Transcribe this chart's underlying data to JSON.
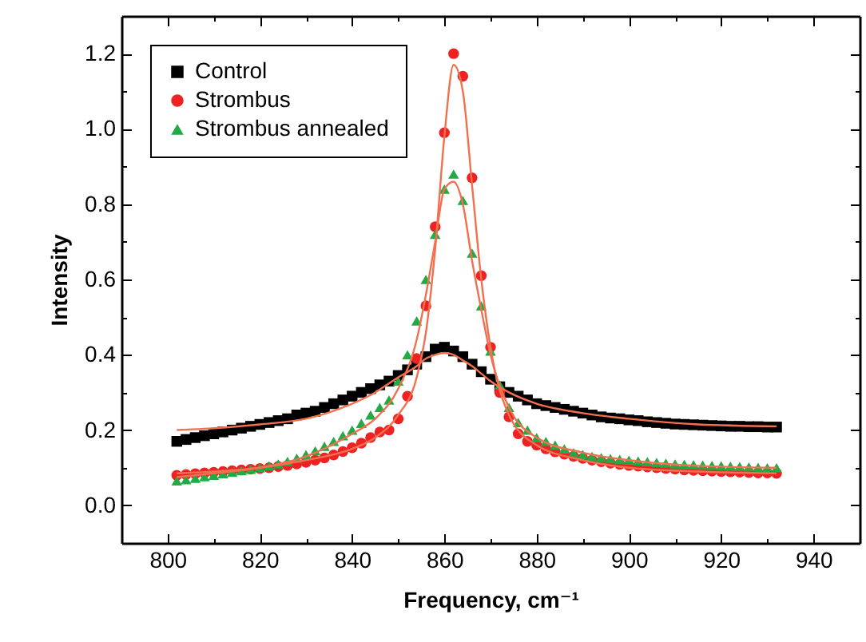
{
  "chart_data": {
    "type": "scatter",
    "xlabel": "Frequency, cm⁻¹",
    "ylabel": "Intensity",
    "legend": "top left",
    "xlim": [
      790,
      950
    ],
    "ylim": [
      -0.1,
      1.3
    ],
    "xticks": [
      800,
      {
        "value": 810,
        "label": null
      },
      820,
      {
        "value": 830,
        "label": null
      },
      840,
      {
        "value": 850,
        "label": null
      },
      860,
      {
        "value": 870,
        "label": null
      },
      880,
      {
        "value": 890,
        "label": null
      },
      900,
      {
        "value": 910,
        "label": null
      },
      920,
      {
        "value": 930,
        "label": null
      },
      940
    ],
    "yticks": [
      {
        "value": -0.1,
        "label": null
      },
      {
        "value": 0,
        "label": "0.0"
      },
      {
        "value": 0.1,
        "label": null
      },
      {
        "value": 0.2,
        "label": "0.2"
      },
      {
        "value": 0.3,
        "label": null
      },
      {
        "value": 0.4,
        "label": "0.4"
      },
      {
        "value": 0.5,
        "label": null
      },
      {
        "value": 0.6,
        "label": "0.6"
      },
      {
        "value": 0.7,
        "label": null
      },
      {
        "value": 0.8,
        "label": "0.8"
      },
      {
        "value": 0.9,
        "label": null
      },
      {
        "value": 1.0,
        "label": "1.0"
      },
      {
        "value": 1.1,
        "label": null
      },
      {
        "value": 1.2,
        "label": "1.2"
      }
    ],
    "series": [
      {
        "name": "Control",
        "marker": "square",
        "color": "#000000",
        "x": [
          802,
          804,
          806,
          808,
          810,
          812,
          814,
          816,
          818,
          820,
          822,
          824,
          826,
          828,
          830,
          832,
          834,
          836,
          838,
          840,
          842,
          844,
          846,
          848,
          850,
          852,
          854,
          856,
          858,
          860,
          862,
          864,
          866,
          868,
          870,
          872,
          874,
          876,
          878,
          880,
          882,
          884,
          886,
          888,
          890,
          892,
          894,
          896,
          898,
          900,
          902,
          904,
          906,
          908,
          910,
          912,
          914,
          916,
          918,
          920,
          922,
          924,
          926,
          928,
          930,
          932
        ],
        "values": [
          0.17,
          0.175,
          0.18,
          0.185,
          0.19,
          0.195,
          0.2,
          0.205,
          0.21,
          0.215,
          0.22,
          0.225,
          0.23,
          0.24,
          0.245,
          0.25,
          0.26,
          0.27,
          0.28,
          0.29,
          0.3,
          0.31,
          0.32,
          0.33,
          0.345,
          0.36,
          0.375,
          0.395,
          0.415,
          0.42,
          0.41,
          0.395,
          0.375,
          0.355,
          0.335,
          0.315,
          0.3,
          0.29,
          0.28,
          0.27,
          0.265,
          0.26,
          0.255,
          0.25,
          0.245,
          0.24,
          0.235,
          0.232,
          0.23,
          0.227,
          0.225,
          0.222,
          0.22,
          0.218,
          0.216,
          0.215,
          0.214,
          0.213,
          0.212,
          0.211,
          0.21,
          0.21,
          0.209,
          0.209,
          0.208,
          0.208
        ]
      },
      {
        "name": "Strombus",
        "marker": "circle",
        "color": "#ee2222",
        "x": [
          802,
          804,
          806,
          808,
          810,
          812,
          814,
          816,
          818,
          820,
          822,
          824,
          826,
          828,
          830,
          832,
          834,
          836,
          838,
          840,
          842,
          844,
          846,
          848,
          850,
          852,
          854,
          856,
          858,
          860,
          862,
          864,
          866,
          868,
          870,
          872,
          874,
          876,
          878,
          880,
          882,
          884,
          886,
          888,
          890,
          892,
          894,
          896,
          898,
          900,
          902,
          904,
          906,
          908,
          910,
          912,
          914,
          916,
          918,
          920,
          922,
          924,
          926,
          928,
          930,
          932
        ],
        "values": [
          0.08,
          0.082,
          0.084,
          0.086,
          0.088,
          0.09,
          0.092,
          0.094,
          0.096,
          0.098,
          0.1,
          0.103,
          0.106,
          0.11,
          0.114,
          0.12,
          0.126,
          0.134,
          0.143,
          0.153,
          0.165,
          0.18,
          0.195,
          0.2,
          0.23,
          0.29,
          0.39,
          0.53,
          0.74,
          0.99,
          1.2,
          1.14,
          0.87,
          0.61,
          0.42,
          0.3,
          0.235,
          0.19,
          0.17,
          0.16,
          0.15,
          0.142,
          0.136,
          0.13,
          0.125,
          0.12,
          0.116,
          0.112,
          0.109,
          0.106,
          0.104,
          0.102,
          0.1,
          0.098,
          0.096,
          0.094,
          0.093,
          0.092,
          0.091,
          0.09,
          0.089,
          0.088,
          0.087,
          0.086,
          0.086,
          0.085
        ]
      },
      {
        "name": "Strombus annealed",
        "marker": "triangle",
        "color": "#22aa44",
        "x": [
          802,
          804,
          806,
          808,
          810,
          812,
          814,
          816,
          818,
          820,
          822,
          824,
          826,
          828,
          830,
          832,
          834,
          836,
          838,
          840,
          842,
          844,
          846,
          848,
          850,
          852,
          854,
          856,
          858,
          860,
          862,
          864,
          866,
          868,
          870,
          872,
          874,
          876,
          878,
          880,
          882,
          884,
          886,
          888,
          890,
          892,
          894,
          896,
          898,
          900,
          902,
          904,
          906,
          908,
          910,
          912,
          914,
          916,
          918,
          920,
          922,
          924,
          926,
          928,
          930,
          932
        ],
        "values": [
          0.065,
          0.068,
          0.072,
          0.076,
          0.08,
          0.084,
          0.088,
          0.092,
          0.096,
          0.1,
          0.105,
          0.11,
          0.117,
          0.125,
          0.135,
          0.145,
          0.157,
          0.17,
          0.185,
          0.2,
          0.218,
          0.24,
          0.26,
          0.28,
          0.33,
          0.4,
          0.49,
          0.6,
          0.72,
          0.84,
          0.88,
          0.81,
          0.67,
          0.53,
          0.41,
          0.32,
          0.26,
          0.22,
          0.2,
          0.18,
          0.17,
          0.16,
          0.15,
          0.14,
          0.135,
          0.13,
          0.127,
          0.124,
          0.122,
          0.12,
          0.118,
          0.116,
          0.114,
          0.112,
          0.11,
          0.109,
          0.108,
          0.107,
          0.106,
          0.105,
          0.104,
          0.103,
          0.102,
          0.101,
          0.1,
          0.1
        ]
      },
      {
        "type": "line",
        "color": "#f07050",
        "x": [
          802,
          810,
          820,
          830,
          840,
          845,
          850,
          854,
          856,
          858,
          860,
          862,
          864,
          866,
          868,
          870,
          874,
          880,
          890,
          900,
          915,
          932
        ],
        "values": [
          0.2,
          0.205,
          0.215,
          0.23,
          0.27,
          0.3,
          0.34,
          0.37,
          0.39,
          0.4,
          0.405,
          0.4,
          0.385,
          0.37,
          0.35,
          0.33,
          0.3,
          0.27,
          0.245,
          0.23,
          0.215,
          0.21
        ]
      },
      {
        "type": "line",
        "color": "#f07050",
        "x": [
          802,
          810,
          820,
          830,
          840,
          845,
          850,
          854,
          856,
          858,
          860,
          862,
          864,
          866,
          868,
          870,
          874,
          880,
          890,
          900,
          915,
          932
        ],
        "values": [
          0.085,
          0.09,
          0.1,
          0.12,
          0.15,
          0.18,
          0.24,
          0.34,
          0.46,
          0.68,
          0.98,
          1.17,
          1.1,
          0.85,
          0.6,
          0.42,
          0.24,
          0.16,
          0.12,
          0.1,
          0.09,
          0.085
        ]
      },
      {
        "type": "line",
        "color": "#f07050",
        "x": [
          802,
          810,
          820,
          830,
          840,
          845,
          850,
          854,
          856,
          858,
          860,
          862,
          864,
          866,
          868,
          870,
          874,
          880,
          890,
          900,
          915,
          932
        ],
        "values": [
          0.075,
          0.085,
          0.1,
          0.13,
          0.19,
          0.23,
          0.31,
          0.44,
          0.56,
          0.7,
          0.84,
          0.86,
          0.8,
          0.65,
          0.52,
          0.4,
          0.26,
          0.18,
          0.14,
          0.12,
          0.105,
          0.1
        ]
      }
    ]
  }
}
